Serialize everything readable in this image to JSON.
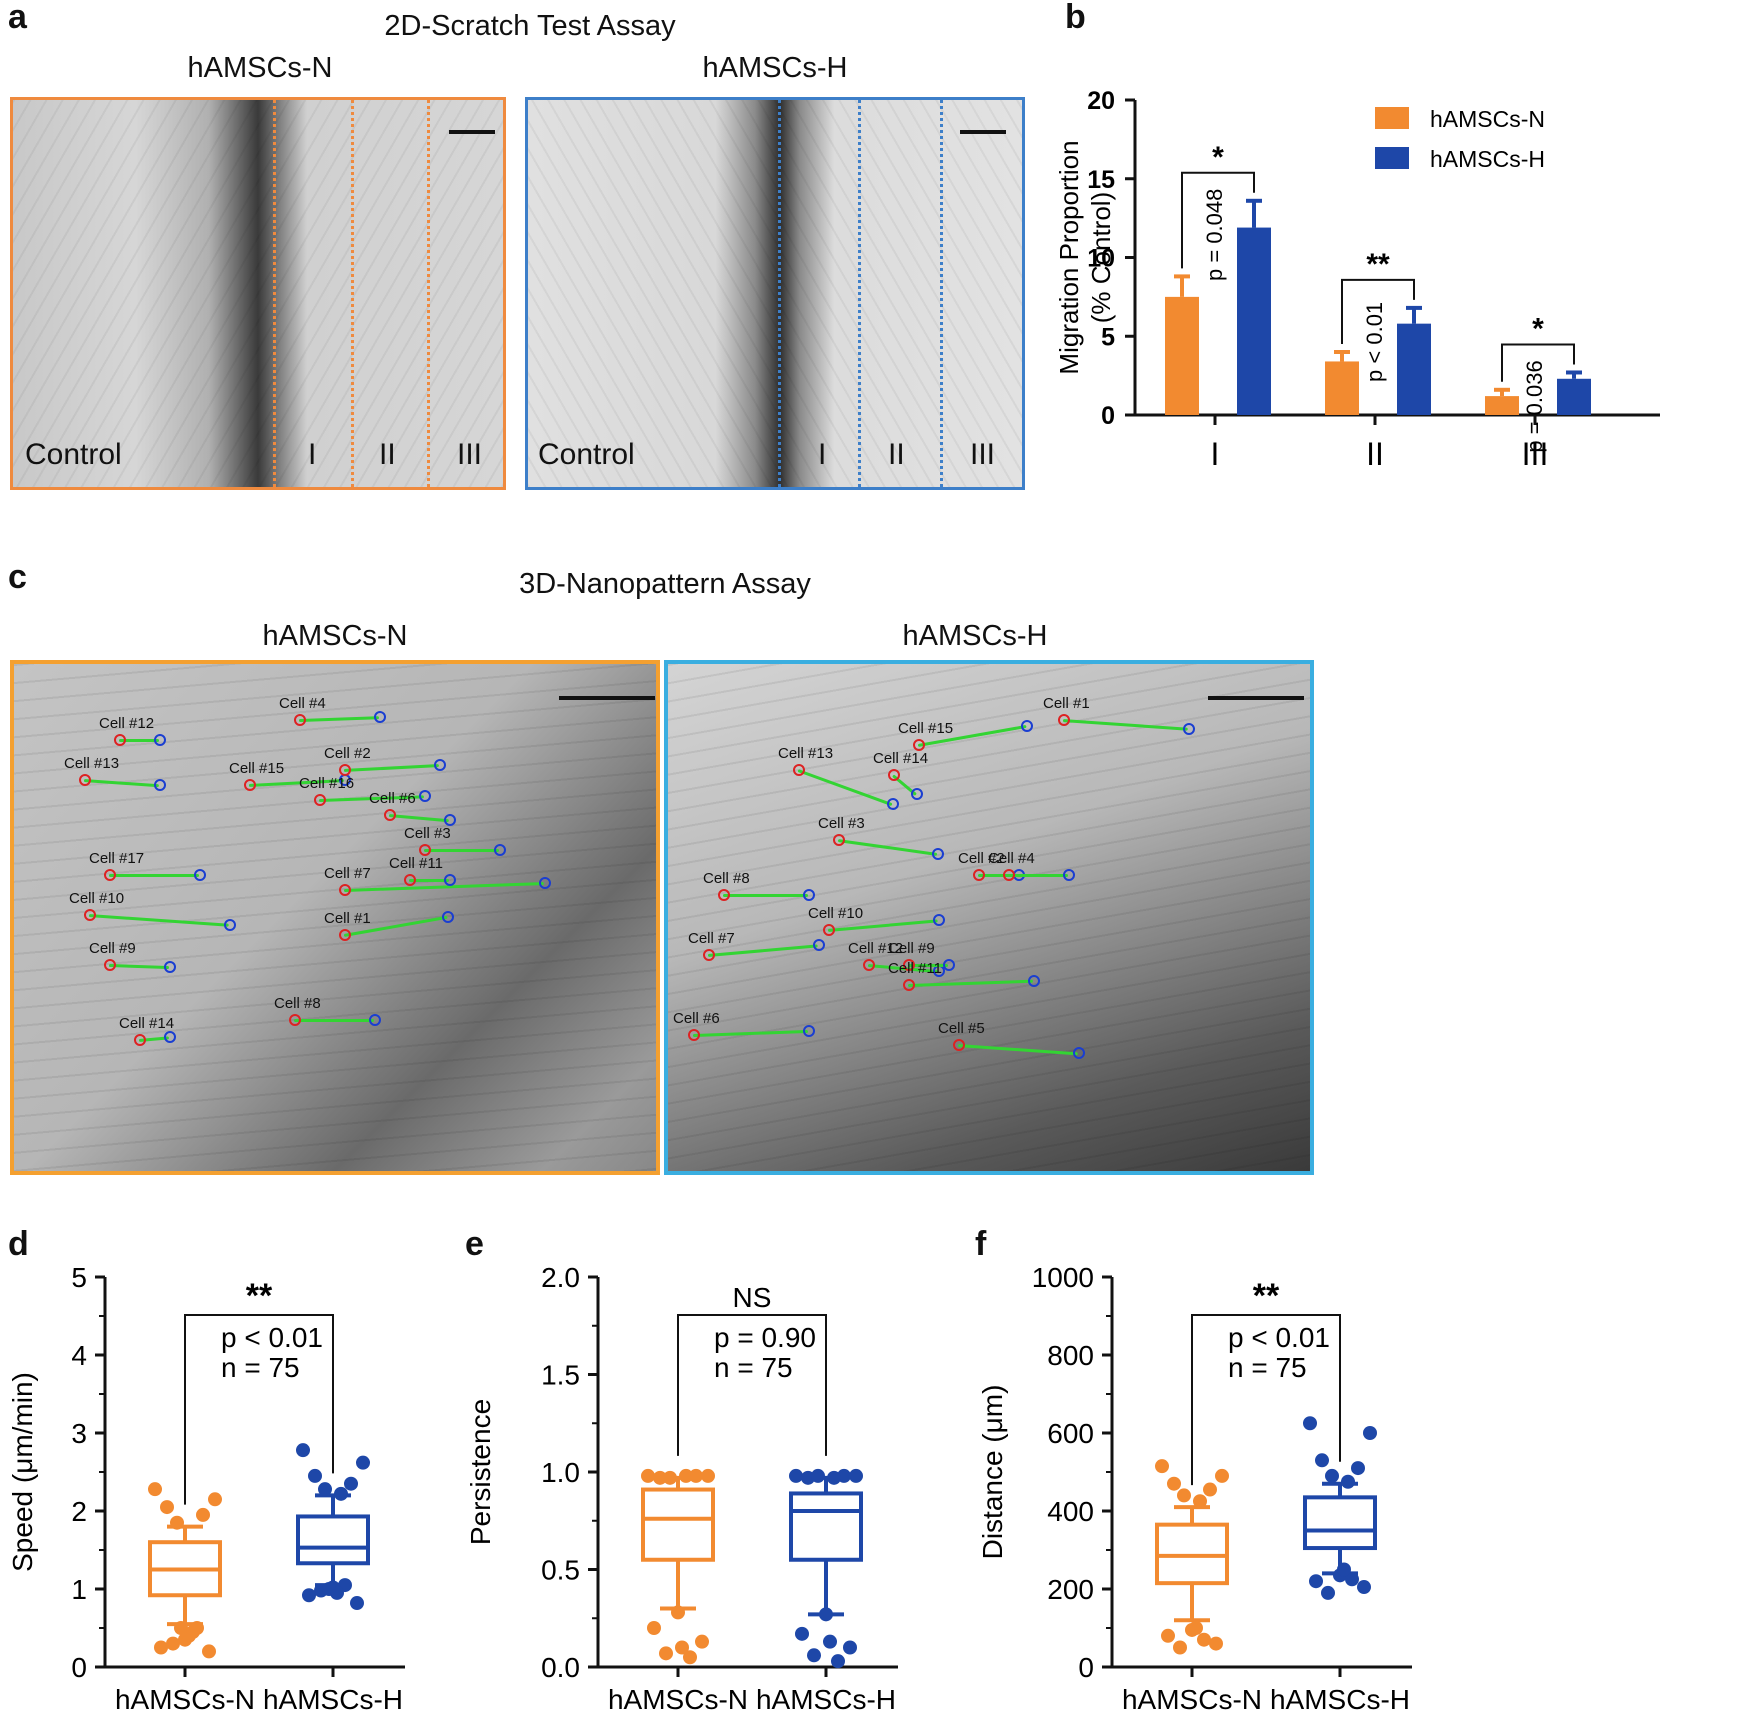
{
  "panel_letters": {
    "a": "a",
    "b": "b",
    "c": "c",
    "d": "d",
    "e": "e",
    "f": "f"
  },
  "colors": {
    "normoxic": "#f28a30",
    "hypoxic": "#1e47a8",
    "track": "#33d433",
    "start_marker": "#d22222",
    "end_marker": "#1a3ed1",
    "frame_n_2d": "#ef8a3e",
    "frame_h_2d": "#3d7fc9",
    "frame_n_3d": "#f4a030",
    "frame_h_3d": "#3aaee0"
  },
  "panel_a": {
    "title": "2D-Scratch Test Assay",
    "left": {
      "title": "hAMSCs-N",
      "control": "Control",
      "zones": [
        "I",
        "II",
        "III"
      ]
    },
    "right": {
      "title": "hAMSCs-H",
      "control": "Control",
      "zones": [
        "I",
        "II",
        "III"
      ]
    }
  },
  "panel_c": {
    "title": "3D-Nanopattern Assay",
    "left": {
      "title": "hAMSCs-N",
      "cells": [
        "Cell #4",
        "Cell #12",
        "Cell #13",
        "Cell #15",
        "Cell #2",
        "Cell #16",
        "Cell #6",
        "Cell #3",
        "Cell #17",
        "Cell #7",
        "Cell #11",
        "Cell #10",
        "Cell #1",
        "Cell #9",
        "Cell #8",
        "Cell #14"
      ]
    },
    "right": {
      "title": "hAMSCs-H",
      "cells": [
        "Cell #1",
        "Cell #15",
        "Cell #13",
        "Cell #14",
        "Cell #3",
        "Cell #2",
        "Cell #4",
        "Cell #8",
        "Cell #10",
        "Cell #7",
        "Cell #12",
        "Cell #9",
        "Cell #11",
        "Cell #6",
        "Cell #5"
      ]
    }
  },
  "chart_data": [
    {
      "panel": "b",
      "type": "bar",
      "categories": [
        "I",
        "II",
        "III"
      ],
      "ylabel_line1": "Migration Proportion",
      "ylabel_line2": "(% Control)",
      "ylim": [
        0,
        20
      ],
      "yticks": [
        "0",
        "5",
        "10",
        "15",
        "20"
      ],
      "legend_position": "top-right",
      "series": [
        {
          "name": "hAMSCs-N",
          "values": [
            7.5,
            3.4,
            1.2
          ],
          "errors": [
            1.3,
            0.6,
            0.4
          ]
        },
        {
          "name": "hAMSCs-H",
          "values": [
            11.9,
            5.8,
            2.3
          ],
          "errors": [
            1.7,
            1.0,
            0.4
          ]
        }
      ],
      "significance": [
        {
          "stars": "*",
          "p": "p = 0.048"
        },
        {
          "stars": "**",
          "p": "p < 0.01"
        },
        {
          "stars": "*",
          "p": "p = 0.036"
        }
      ]
    },
    {
      "panel": "d",
      "type": "box",
      "ylabel": "Speed (μm/min)",
      "ylim": [
        0,
        5
      ],
      "yticks": [
        "0",
        "1",
        "2",
        "3",
        "4",
        "5"
      ],
      "categories": [
        "hAMSCs-N",
        "hAMSCs-H"
      ],
      "stars": "**",
      "p": "p < 0.01",
      "n": "n = 75",
      "boxes": [
        {
          "q1": 0.92,
          "median": 1.25,
          "q3": 1.6,
          "whisker_low": 0.55,
          "whisker_high": 1.8,
          "outliers": [
            2.28,
            2.15,
            2.05,
            1.95,
            1.85,
            0.45,
            0.35,
            0.25,
            0.2,
            0.3,
            0.5,
            0.4,
            0.5
          ]
        },
        {
          "q1": 1.33,
          "median": 1.53,
          "q3": 1.93,
          "whisker_low": 1.05,
          "whisker_high": 2.2,
          "outliers": [
            2.78,
            2.62,
            2.45,
            2.35,
            2.28,
            2.22,
            1.02,
            0.92,
            0.82,
            0.98,
            1.05,
            0.95,
            1.0
          ]
        }
      ]
    },
    {
      "panel": "e",
      "type": "box",
      "ylabel": "Persistence",
      "ylim": [
        0,
        2
      ],
      "yticks": [
        "0.0",
        "0.5",
        "1.0",
        "1.5",
        "2.0"
      ],
      "categories": [
        "hAMSCs-N",
        "hAMSCs-H"
      ],
      "stars": "NS",
      "p": "p = 0.90",
      "n": "n = 75",
      "boxes": [
        {
          "q1": 0.55,
          "median": 0.76,
          "q3": 0.91,
          "whisker_low": 0.3,
          "whisker_high": 0.97,
          "outliers": [
            0.98,
            0.98,
            0.97,
            0.98,
            0.97,
            0.98,
            0.28,
            0.2,
            0.13,
            0.07,
            0.05,
            0.1
          ]
        },
        {
          "q1": 0.55,
          "median": 0.8,
          "q3": 0.89,
          "whisker_low": 0.27,
          "whisker_high": 0.97,
          "outliers": [
            0.98,
            0.98,
            0.97,
            0.98,
            0.98,
            0.97,
            0.27,
            0.17,
            0.1,
            0.06,
            0.03,
            0.13
          ]
        }
      ]
    },
    {
      "panel": "f",
      "type": "box",
      "ylabel": "Distance (μm)",
      "ylim": [
        0,
        1000
      ],
      "yticks": [
        "0",
        "200",
        "400",
        "600",
        "800",
        "1000"
      ],
      "categories": [
        "hAMSCs-N",
        "hAMSCs-H"
      ],
      "stars": "**",
      "p": "p < 0.01",
      "n": "n = 75",
      "boxes": [
        {
          "q1": 215,
          "median": 285,
          "q3": 365,
          "whisker_low": 120,
          "whisker_high": 410,
          "outliers": [
            515,
            490,
            470,
            455,
            440,
            425,
            95,
            80,
            60,
            50,
            70,
            100
          ]
        },
        {
          "q1": 305,
          "median": 350,
          "q3": 435,
          "whisker_low": 240,
          "whisker_high": 470,
          "outliers": [
            625,
            600,
            530,
            510,
            490,
            475,
            235,
            220,
            205,
            190,
            225,
            250
          ]
        }
      ]
    }
  ]
}
